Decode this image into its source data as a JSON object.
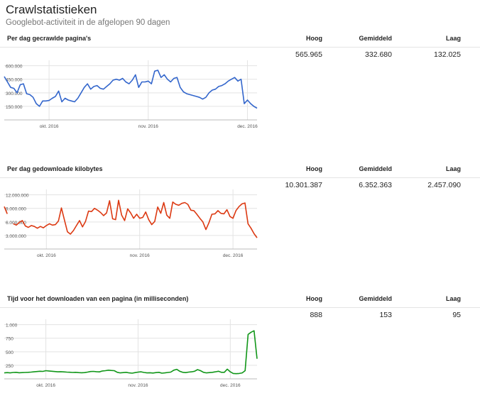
{
  "page": {
    "title": "Crawlstatistieken",
    "subtitle": "Googlebot-activiteit in de afgelopen 90 dagen"
  },
  "columns": {
    "hoog": "Hoog",
    "gemiddeld": "Gemiddeld",
    "laag": "Laag"
  },
  "sections": [
    {
      "title": "Per dag gecrawlde pagina's",
      "hoog": "565.965",
      "gemiddeld": "332.680",
      "laag": "132.025"
    },
    {
      "title": "Per dag gedownloade kilobytes",
      "hoog": "10.301.387",
      "gemiddeld": "6.352.363",
      "laag": "2.457.090"
    },
    {
      "title": "Tijd voor het downloaden van een pagina (in milliseconden)",
      "hoog": "888",
      "gemiddeld": "153",
      "laag": "95"
    }
  ],
  "chart_data": [
    {
      "type": "line",
      "color": "#3366cc",
      "x_labels": [
        "okt. 2016",
        "nov. 2016",
        "dec. 2016"
      ],
      "x_label_index": [
        14,
        45,
        76
      ],
      "y_ticks": [
        "600.000",
        "450.000",
        "300.000",
        "150.000"
      ],
      "y_tick_values": [
        600000,
        450000,
        300000,
        150000
      ],
      "ylim": [
        0,
        660000
      ],
      "grid": true,
      "series": [
        {
          "values": [
            480000,
            420000,
            360000,
            350000,
            300000,
            390000,
            400000,
            290000,
            280000,
            250000,
            180000,
            150000,
            210000,
            210000,
            215000,
            240000,
            260000,
            320000,
            200000,
            240000,
            220000,
            210000,
            200000,
            240000,
            300000,
            360000,
            400000,
            340000,
            370000,
            380000,
            350000,
            340000,
            370000,
            400000,
            440000,
            450000,
            440000,
            460000,
            420000,
            400000,
            440000,
            500000,
            360000,
            420000,
            420000,
            430000,
            400000,
            540000,
            550000,
            470000,
            500000,
            450000,
            420000,
            460000,
            470000,
            360000,
            310000,
            290000,
            280000,
            270000,
            260000,
            250000,
            230000,
            250000,
            300000,
            330000,
            340000,
            370000,
            380000,
            400000,
            430000,
            450000,
            470000,
            430000,
            450000,
            180000,
            220000,
            180000,
            150000,
            130000
          ]
        }
      ]
    },
    {
      "type": "line",
      "color": "#dc3912",
      "x_labels": [
        "okt. 2016",
        "nov. 2016",
        "dec. 2016"
      ],
      "x_label_index": [
        14,
        45,
        76
      ],
      "y_ticks": [
        "12.000.000",
        "9.000.000",
        "6.000.000",
        "3.000.000"
      ],
      "y_tick_values": [
        12000000,
        9000000,
        6000000,
        3000000
      ],
      "ylim": [
        0,
        13200000
      ],
      "grid": true,
      "series": [
        {
          "values": [
            9400000,
            7800000,
            null,
            5600000,
            5300000,
            5900000,
            6300000,
            5100000,
            4800000,
            5200000,
            5000000,
            4600000,
            5000000,
            4700000,
            5200000,
            5600000,
            5300000,
            5400000,
            6200000,
            9100000,
            6400000,
            3800000,
            3300000,
            4100000,
            5200000,
            6300000,
            4900000,
            6100000,
            8400000,
            8300000,
            9000000,
            8600000,
            8100000,
            7400000,
            8000000,
            10700000,
            6700000,
            6500000,
            10800000,
            7500000,
            6300000,
            8900000,
            8000000,
            6800000,
            7700000,
            6800000,
            7000000,
            8200000,
            6500000,
            5400000,
            6100000,
            9300000,
            7900000,
            10300000,
            7500000,
            6800000,
            10400000,
            9900000,
            9700000,
            10100000,
            10300000,
            9900000,
            8600000,
            8500000,
            7700000,
            6800000,
            6000000,
            4300000,
            5800000,
            7700000,
            7800000,
            8500000,
            7900000,
            7800000,
            8700000,
            7200000,
            6800000,
            8500000,
            9400000,
            10000000,
            10200000,
            5600000,
            4600000,
            3400000,
            2500000
          ]
        }
      ]
    },
    {
      "type": "line",
      "color": "#109618",
      "x_labels": [
        "okt. 2016",
        "nov. 2016",
        "dec. 2016"
      ],
      "x_label_index": [
        14,
        45,
        76
      ],
      "y_ticks": [
        "1.000",
        "750",
        "500",
        "250"
      ],
      "y_tick_values": [
        1000,
        750,
        500,
        250
      ],
      "ylim": [
        0,
        1100
      ],
      "grid": true,
      "series": [
        {
          "values": [
            110,
            115,
            110,
            118,
            120,
            112,
            115,
            118,
            120,
            125,
            130,
            135,
            140,
            138,
            150,
            145,
            140,
            135,
            130,
            132,
            128,
            125,
            122,
            118,
            120,
            115,
            112,
            115,
            125,
            135,
            138,
            132,
            128,
            145,
            150,
            160,
            155,
            150,
            120,
            110,
            115,
            120,
            110,
            105,
            115,
            125,
            130,
            118,
            110,
            112,
            108,
            115,
            120,
            105,
            110,
            118,
            125,
            160,
            175,
            140,
            120,
            115,
            125,
            130,
            140,
            170,
            150,
            120,
            110,
            115,
            120,
            130,
            140,
            120,
            120,
            180,
            130,
            100,
            95,
            100,
            110,
            150,
            820,
            860,
            888,
            370
          ]
        }
      ]
    }
  ]
}
